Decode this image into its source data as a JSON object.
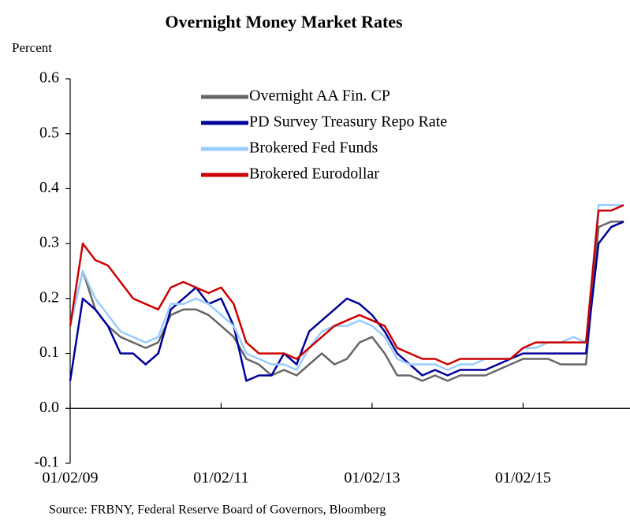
{
  "chart_data": {
    "type": "line",
    "title": "Overnight Money Market Rates",
    "y_label": "Percent",
    "source": "Source: FRBNY, Federal Reserve Board of Governors, Bloomberg",
    "x": [
      "01/02/09",
      "03/02/09",
      "05/02/09",
      "07/02/09",
      "09/02/09",
      "11/02/09",
      "01/02/10",
      "03/02/10",
      "05/02/10",
      "07/02/10",
      "09/02/10",
      "11/02/10",
      "01/02/11",
      "03/02/11",
      "05/02/11",
      "07/02/11",
      "09/02/11",
      "11/02/11",
      "01/02/12",
      "03/02/12",
      "05/02/12",
      "07/02/12",
      "09/02/12",
      "11/02/12",
      "01/02/13",
      "03/02/13",
      "05/02/13",
      "07/02/13",
      "09/02/13",
      "11/02/13",
      "01/02/14",
      "03/02/14",
      "05/02/14",
      "07/02/14",
      "09/02/14",
      "11/02/14",
      "01/02/15",
      "03/02/15",
      "05/02/15",
      "07/02/15",
      "09/02/15",
      "11/02/15",
      "01/02/16",
      "03/02/16",
      "05/02/16"
    ],
    "xlim": [
      "01/02/09",
      "06/02/16"
    ],
    "xticks": [
      "01/02/09",
      "01/02/11",
      "01/02/13",
      "01/02/15"
    ],
    "ylim": [
      -0.1,
      0.6
    ],
    "yticks": [
      -0.1,
      {
        "value": 0,
        "label": "0.0"
      },
      0.1,
      0.2,
      0.3,
      0.4,
      0.5,
      0.6
    ],
    "legend": "upper center",
    "series": [
      {
        "name": "Overnight AA Fin. CP",
        "color": "#666666",
        "values": [
          0.15,
          0.25,
          0.18,
          0.15,
          0.13,
          0.12,
          0.11,
          0.12,
          0.17,
          0.18,
          0.18,
          0.17,
          0.15,
          0.13,
          0.09,
          0.08,
          0.06,
          0.07,
          0.06,
          0.08,
          0.1,
          0.08,
          0.09,
          0.12,
          0.13,
          0.1,
          0.06,
          0.06,
          0.05,
          0.06,
          0.05,
          0.06,
          0.06,
          0.06,
          0.07,
          0.08,
          0.09,
          0.09,
          0.09,
          0.08,
          0.08,
          0.08,
          0.33,
          0.34,
          0.34
        ]
      },
      {
        "name": "PD Survey Treasury Repo Rate",
        "color": "#000099",
        "values": [
          0.05,
          0.2,
          0.18,
          0.15,
          0.1,
          0.1,
          0.08,
          0.1,
          0.18,
          0.2,
          0.22,
          0.19,
          0.2,
          0.15,
          0.05,
          0.06,
          0.06,
          0.1,
          0.08,
          0.14,
          0.16,
          0.18,
          0.2,
          0.19,
          0.17,
          0.14,
          0.1,
          0.08,
          0.06,
          0.07,
          0.06,
          0.07,
          0.07,
          0.07,
          0.08,
          0.09,
          0.1,
          0.1,
          0.1,
          0.1,
          0.1,
          0.1,
          0.3,
          0.33,
          0.34
        ]
      },
      {
        "name": "Brokered Fed Funds",
        "color": "#99ccff",
        "values": [
          0.15,
          0.25,
          0.2,
          0.17,
          0.14,
          0.13,
          0.12,
          0.13,
          0.19,
          0.19,
          0.2,
          0.19,
          0.17,
          0.15,
          0.1,
          0.09,
          0.08,
          0.08,
          0.07,
          0.11,
          0.14,
          0.15,
          0.15,
          0.16,
          0.15,
          0.13,
          0.09,
          0.08,
          0.08,
          0.08,
          0.07,
          0.08,
          0.08,
          0.09,
          0.09,
          0.09,
          0.11,
          0.11,
          0.12,
          0.12,
          0.13,
          0.12,
          0.37,
          0.37,
          0.37
        ]
      },
      {
        "name": "Brokered Eurodollar",
        "color": "#cc0000",
        "values": [
          0.15,
          0.3,
          0.27,
          0.26,
          0.23,
          0.2,
          0.19,
          0.18,
          0.22,
          0.23,
          0.22,
          0.21,
          0.22,
          0.19,
          0.12,
          0.1,
          0.1,
          0.1,
          0.09,
          0.11,
          0.13,
          0.15,
          0.16,
          0.17,
          0.16,
          0.15,
          0.11,
          0.1,
          0.09,
          0.09,
          0.08,
          0.09,
          0.09,
          0.09,
          0.09,
          0.09,
          0.11,
          0.12,
          0.12,
          0.12,
          0.12,
          0.12,
          0.36,
          0.36,
          0.37
        ]
      }
    ]
  }
}
